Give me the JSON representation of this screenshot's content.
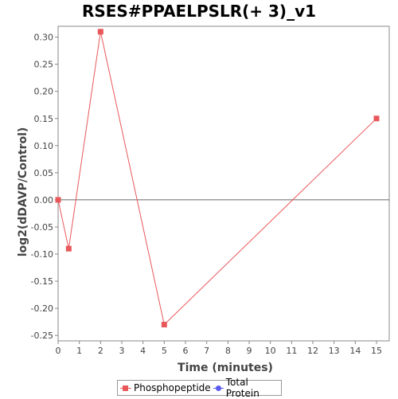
{
  "chart_data": {
    "type": "line",
    "title": "RSES#PPAELPSLR(+ 3)_v1",
    "xlabel": "Time (minutes)",
    "ylabel": "log2(dDAVP/Control)",
    "xlim": [
      0,
      15.6
    ],
    "ylim": [
      -0.26,
      0.32
    ],
    "x_ticks": [
      0,
      1,
      2,
      3,
      4,
      5,
      6,
      7,
      8,
      9,
      10,
      11,
      12,
      13,
      14,
      15
    ],
    "y_ticks": [
      -0.25,
      -0.2,
      -0.15,
      -0.1,
      -0.05,
      0.0,
      0.05,
      0.1,
      0.15,
      0.2,
      0.25,
      0.3
    ],
    "y_tick_labels": [
      "-0.25",
      "-0.20",
      "-0.15",
      "-0.10",
      "-0.05",
      "0.00",
      "0.05",
      "0.10",
      "0.15",
      "0.20",
      "0.25",
      "0.30"
    ],
    "zero_line": true,
    "grid": false,
    "legend_position": "bottom",
    "series": [
      {
        "name": "Phosphopeptide",
        "color": "#e8575a",
        "marker": "square",
        "x": [
          0,
          0.5,
          2,
          5,
          15
        ],
        "y": [
          0.0,
          -0.09,
          0.31,
          -0.23,
          0.15
        ]
      },
      {
        "name": "Total Protein",
        "color": "#5a5aef",
        "marker": "circle",
        "x": [],
        "y": []
      }
    ]
  }
}
